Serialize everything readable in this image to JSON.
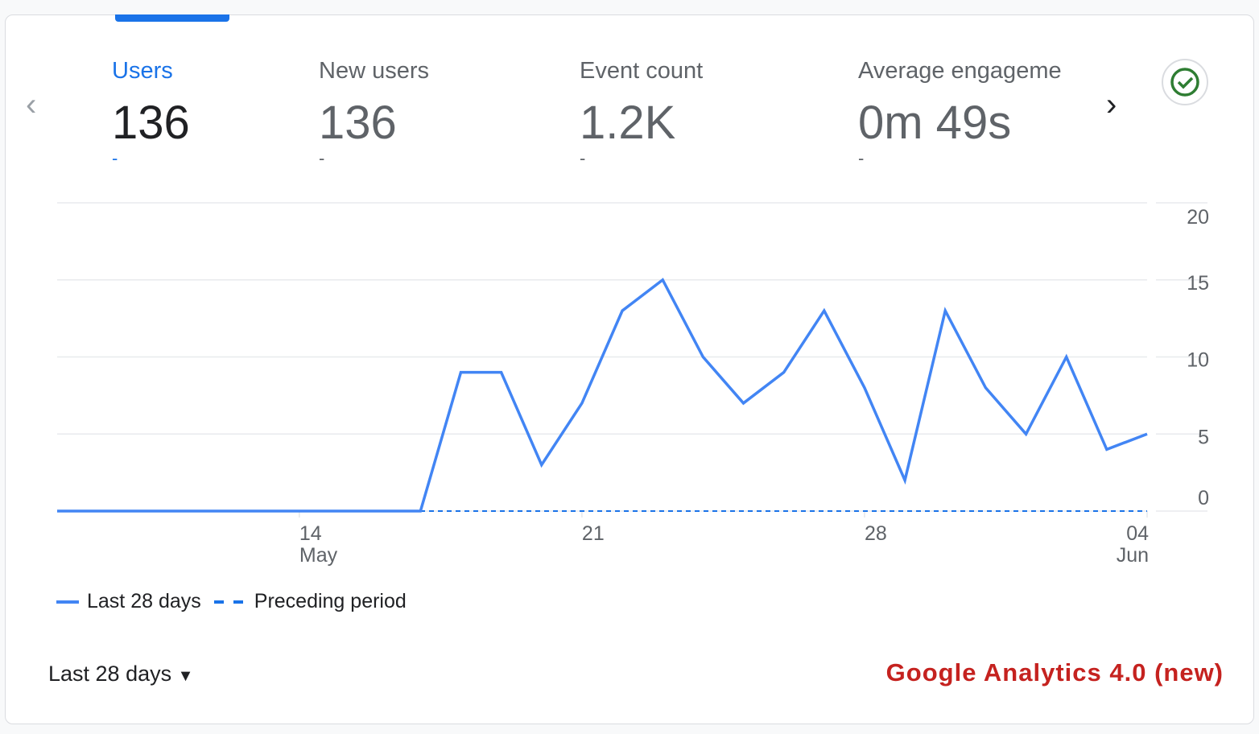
{
  "metrics": [
    {
      "label": "Users",
      "value": "136",
      "change": "-"
    },
    {
      "label": "New users",
      "value": "136",
      "change": "-"
    },
    {
      "label": "Event count",
      "value": "1.2K",
      "change": "-"
    },
    {
      "label": "Average engageme",
      "value": "0m 49s",
      "change": "-"
    }
  ],
  "range_label": "Last 28 days",
  "brand_text": "Google Analytics 4.0 (new)",
  "colors": {
    "accent": "#4285f4",
    "brand": "#c5221f",
    "check": "#2e7d32"
  },
  "chart_data": {
    "type": "line",
    "x": [
      "May 8",
      "May 9",
      "May 10",
      "May 11",
      "May 12",
      "May 13",
      "May 14",
      "May 15",
      "May 16",
      "May 17",
      "May 18",
      "May 19",
      "May 20",
      "May 21",
      "May 22",
      "May 23",
      "May 24",
      "May 25",
      "May 26",
      "May 27",
      "May 28",
      "May 29",
      "May 30",
      "May 31",
      "Jun 1",
      "Jun 2",
      "Jun 3",
      "Jun 4"
    ],
    "series": [
      {
        "name": "Last 28 days",
        "style": "solid",
        "values": [
          0,
          0,
          0,
          0,
          0,
          0,
          0,
          0,
          0,
          0,
          9,
          9,
          3,
          7,
          13,
          15,
          10,
          7,
          9,
          13,
          8,
          2,
          13,
          8,
          5,
          10,
          4,
          5
        ]
      },
      {
        "name": "Preceding period",
        "style": "dashed",
        "values": [
          0,
          0,
          0,
          0,
          0,
          0,
          0,
          0,
          0,
          0,
          0,
          0,
          0,
          0,
          0,
          0,
          0,
          0,
          0,
          0,
          0,
          0,
          0,
          0,
          0,
          0,
          0,
          0
        ]
      }
    ],
    "ylim": [
      0,
      20
    ],
    "yticks": [
      "0",
      "5",
      "10",
      "15",
      "20"
    ],
    "xticks": [
      {
        "index": 6,
        "day": "14",
        "month": "May"
      },
      {
        "index": 13,
        "day": "21",
        "month": ""
      },
      {
        "index": 20,
        "day": "28",
        "month": ""
      },
      {
        "index": 27,
        "day": "04",
        "month": "Jun"
      }
    ],
    "legend": [
      "Last 28 days",
      "Preceding period"
    ],
    "legend_position": "bottom-left",
    "grid": true
  }
}
